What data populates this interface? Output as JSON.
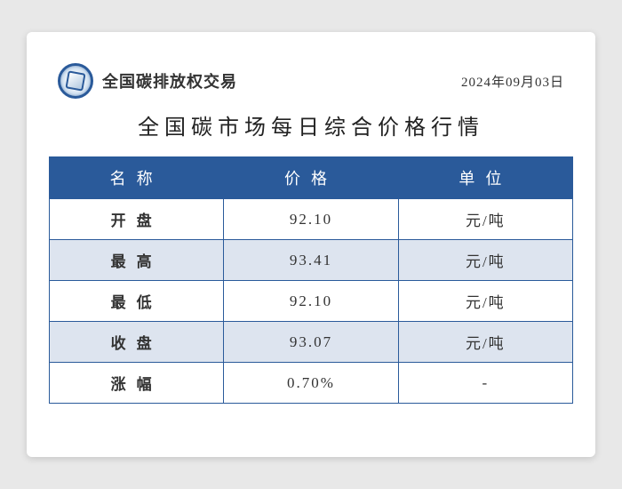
{
  "header": {
    "brand_text": "全国碳排放权交易",
    "date": "2024年09月03日"
  },
  "title": "全国碳市场每日综合价格行情",
  "table": {
    "type": "table",
    "header_bg_color": "#2a5a9a",
    "header_text_color": "#ffffff",
    "row_alt_bg_color": "#dde4ef",
    "row_bg_color": "#ffffff",
    "border_color": "#2a5a9a",
    "columns": [
      {
        "label": "名称",
        "letter_spacing": 12
      },
      {
        "label": "价格",
        "letter_spacing": 12
      },
      {
        "label": "单位",
        "letter_spacing": 12
      }
    ],
    "rows": [
      {
        "name": "开盘",
        "price": "92.10",
        "unit": "元/吨"
      },
      {
        "name": "最高",
        "price": "93.41",
        "unit": "元/吨"
      },
      {
        "name": "最低",
        "price": "92.10",
        "unit": "元/吨"
      },
      {
        "name": "收盘",
        "price": "93.07",
        "unit": "元/吨"
      },
      {
        "name": "涨幅",
        "price": "0.70%",
        "unit": "-"
      }
    ]
  },
  "styling": {
    "page_bg": "#e8e8e8",
    "card_bg": "#ffffff",
    "title_fontsize": 24,
    "header_fontsize": 18,
    "cell_fontsize": 17,
    "brand_fontsize": 18,
    "date_fontsize": 15,
    "logo_border_color": "#2a5a9a"
  }
}
